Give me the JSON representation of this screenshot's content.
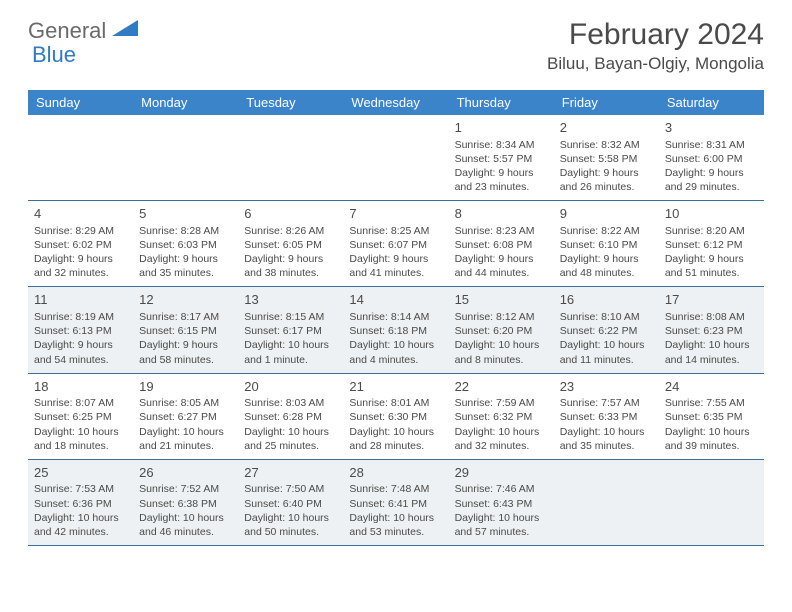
{
  "logo": {
    "general": "General",
    "blue": "Blue"
  },
  "title": "February 2024",
  "location": "Biluu, Bayan-Olgiy, Mongolia",
  "header_bg": "#3b84c9",
  "alt_bg": "#eef1f3",
  "border_color": "#3b6fa0",
  "weekdays": [
    "Sunday",
    "Monday",
    "Tuesday",
    "Wednesday",
    "Thursday",
    "Friday",
    "Saturday"
  ],
  "weeks": [
    {
      "alt": false,
      "days": [
        null,
        null,
        null,
        null,
        {
          "n": "1",
          "sr": "8:34 AM",
          "ss": "5:57 PM",
          "dl1": "Daylight: 9 hours",
          "dl2": "and 23 minutes."
        },
        {
          "n": "2",
          "sr": "8:32 AM",
          "ss": "5:58 PM",
          "dl1": "Daylight: 9 hours",
          "dl2": "and 26 minutes."
        },
        {
          "n": "3",
          "sr": "8:31 AM",
          "ss": "6:00 PM",
          "dl1": "Daylight: 9 hours",
          "dl2": "and 29 minutes."
        }
      ]
    },
    {
      "alt": false,
      "days": [
        {
          "n": "4",
          "sr": "8:29 AM",
          "ss": "6:02 PM",
          "dl1": "Daylight: 9 hours",
          "dl2": "and 32 minutes."
        },
        {
          "n": "5",
          "sr": "8:28 AM",
          "ss": "6:03 PM",
          "dl1": "Daylight: 9 hours",
          "dl2": "and 35 minutes."
        },
        {
          "n": "6",
          "sr": "8:26 AM",
          "ss": "6:05 PM",
          "dl1": "Daylight: 9 hours",
          "dl2": "and 38 minutes."
        },
        {
          "n": "7",
          "sr": "8:25 AM",
          "ss": "6:07 PM",
          "dl1": "Daylight: 9 hours",
          "dl2": "and 41 minutes."
        },
        {
          "n": "8",
          "sr": "8:23 AM",
          "ss": "6:08 PM",
          "dl1": "Daylight: 9 hours",
          "dl2": "and 44 minutes."
        },
        {
          "n": "9",
          "sr": "8:22 AM",
          "ss": "6:10 PM",
          "dl1": "Daylight: 9 hours",
          "dl2": "and 48 minutes."
        },
        {
          "n": "10",
          "sr": "8:20 AM",
          "ss": "6:12 PM",
          "dl1": "Daylight: 9 hours",
          "dl2": "and 51 minutes."
        }
      ]
    },
    {
      "alt": true,
      "days": [
        {
          "n": "11",
          "sr": "8:19 AM",
          "ss": "6:13 PM",
          "dl1": "Daylight: 9 hours",
          "dl2": "and 54 minutes."
        },
        {
          "n": "12",
          "sr": "8:17 AM",
          "ss": "6:15 PM",
          "dl1": "Daylight: 9 hours",
          "dl2": "and 58 minutes."
        },
        {
          "n": "13",
          "sr": "8:15 AM",
          "ss": "6:17 PM",
          "dl1": "Daylight: 10 hours",
          "dl2": "and 1 minute."
        },
        {
          "n": "14",
          "sr": "8:14 AM",
          "ss": "6:18 PM",
          "dl1": "Daylight: 10 hours",
          "dl2": "and 4 minutes."
        },
        {
          "n": "15",
          "sr": "8:12 AM",
          "ss": "6:20 PM",
          "dl1": "Daylight: 10 hours",
          "dl2": "and 8 minutes."
        },
        {
          "n": "16",
          "sr": "8:10 AM",
          "ss": "6:22 PM",
          "dl1": "Daylight: 10 hours",
          "dl2": "and 11 minutes."
        },
        {
          "n": "17",
          "sr": "8:08 AM",
          "ss": "6:23 PM",
          "dl1": "Daylight: 10 hours",
          "dl2": "and 14 minutes."
        }
      ]
    },
    {
      "alt": false,
      "days": [
        {
          "n": "18",
          "sr": "8:07 AM",
          "ss": "6:25 PM",
          "dl1": "Daylight: 10 hours",
          "dl2": "and 18 minutes."
        },
        {
          "n": "19",
          "sr": "8:05 AM",
          "ss": "6:27 PM",
          "dl1": "Daylight: 10 hours",
          "dl2": "and 21 minutes."
        },
        {
          "n": "20",
          "sr": "8:03 AM",
          "ss": "6:28 PM",
          "dl1": "Daylight: 10 hours",
          "dl2": "and 25 minutes."
        },
        {
          "n": "21",
          "sr": "8:01 AM",
          "ss": "6:30 PM",
          "dl1": "Daylight: 10 hours",
          "dl2": "and 28 minutes."
        },
        {
          "n": "22",
          "sr": "7:59 AM",
          "ss": "6:32 PM",
          "dl1": "Daylight: 10 hours",
          "dl2": "and 32 minutes."
        },
        {
          "n": "23",
          "sr": "7:57 AM",
          "ss": "6:33 PM",
          "dl1": "Daylight: 10 hours",
          "dl2": "and 35 minutes."
        },
        {
          "n": "24",
          "sr": "7:55 AM",
          "ss": "6:35 PM",
          "dl1": "Daylight: 10 hours",
          "dl2": "and 39 minutes."
        }
      ]
    },
    {
      "alt": true,
      "days": [
        {
          "n": "25",
          "sr": "7:53 AM",
          "ss": "6:36 PM",
          "dl1": "Daylight: 10 hours",
          "dl2": "and 42 minutes."
        },
        {
          "n": "26",
          "sr": "7:52 AM",
          "ss": "6:38 PM",
          "dl1": "Daylight: 10 hours",
          "dl2": "and 46 minutes."
        },
        {
          "n": "27",
          "sr": "7:50 AM",
          "ss": "6:40 PM",
          "dl1": "Daylight: 10 hours",
          "dl2": "and 50 minutes."
        },
        {
          "n": "28",
          "sr": "7:48 AM",
          "ss": "6:41 PM",
          "dl1": "Daylight: 10 hours",
          "dl2": "and 53 minutes."
        },
        {
          "n": "29",
          "sr": "7:46 AM",
          "ss": "6:43 PM",
          "dl1": "Daylight: 10 hours",
          "dl2": "and 57 minutes."
        },
        null,
        null
      ]
    }
  ]
}
